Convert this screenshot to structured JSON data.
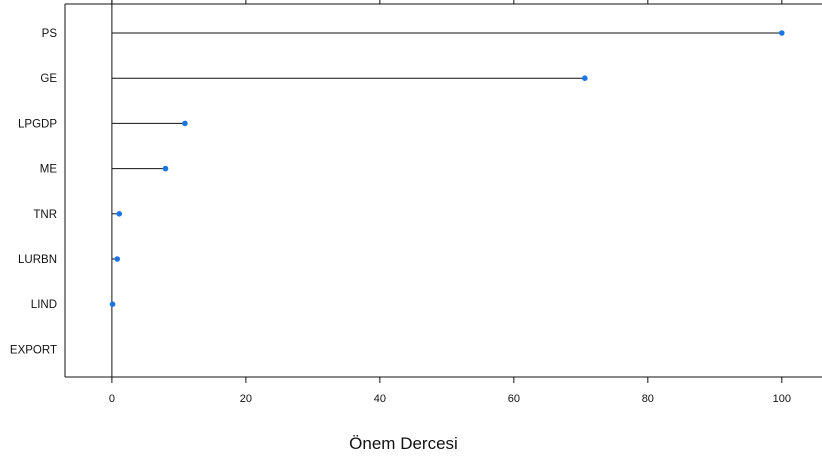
{
  "chart_data": {
    "type": "lollipop",
    "title": "",
    "xlabel": "Önem Dercesi",
    "ylabel": "",
    "categories": [
      "PS",
      "GE",
      "LPGDP",
      "ME",
      "TNR",
      "LURBN",
      "LIND",
      "EXPORT"
    ],
    "values": [
      100,
      70.6,
      10.9,
      8.0,
      1.1,
      0.8,
      0.1,
      null
    ],
    "xlim": [
      -7,
      106
    ],
    "xticks": [
      0,
      20,
      40,
      60,
      80,
      100
    ],
    "grid": false,
    "legend": "none",
    "colors": {
      "point": "#1a75e8",
      "line": "#111111",
      "axis": "#111111"
    }
  }
}
